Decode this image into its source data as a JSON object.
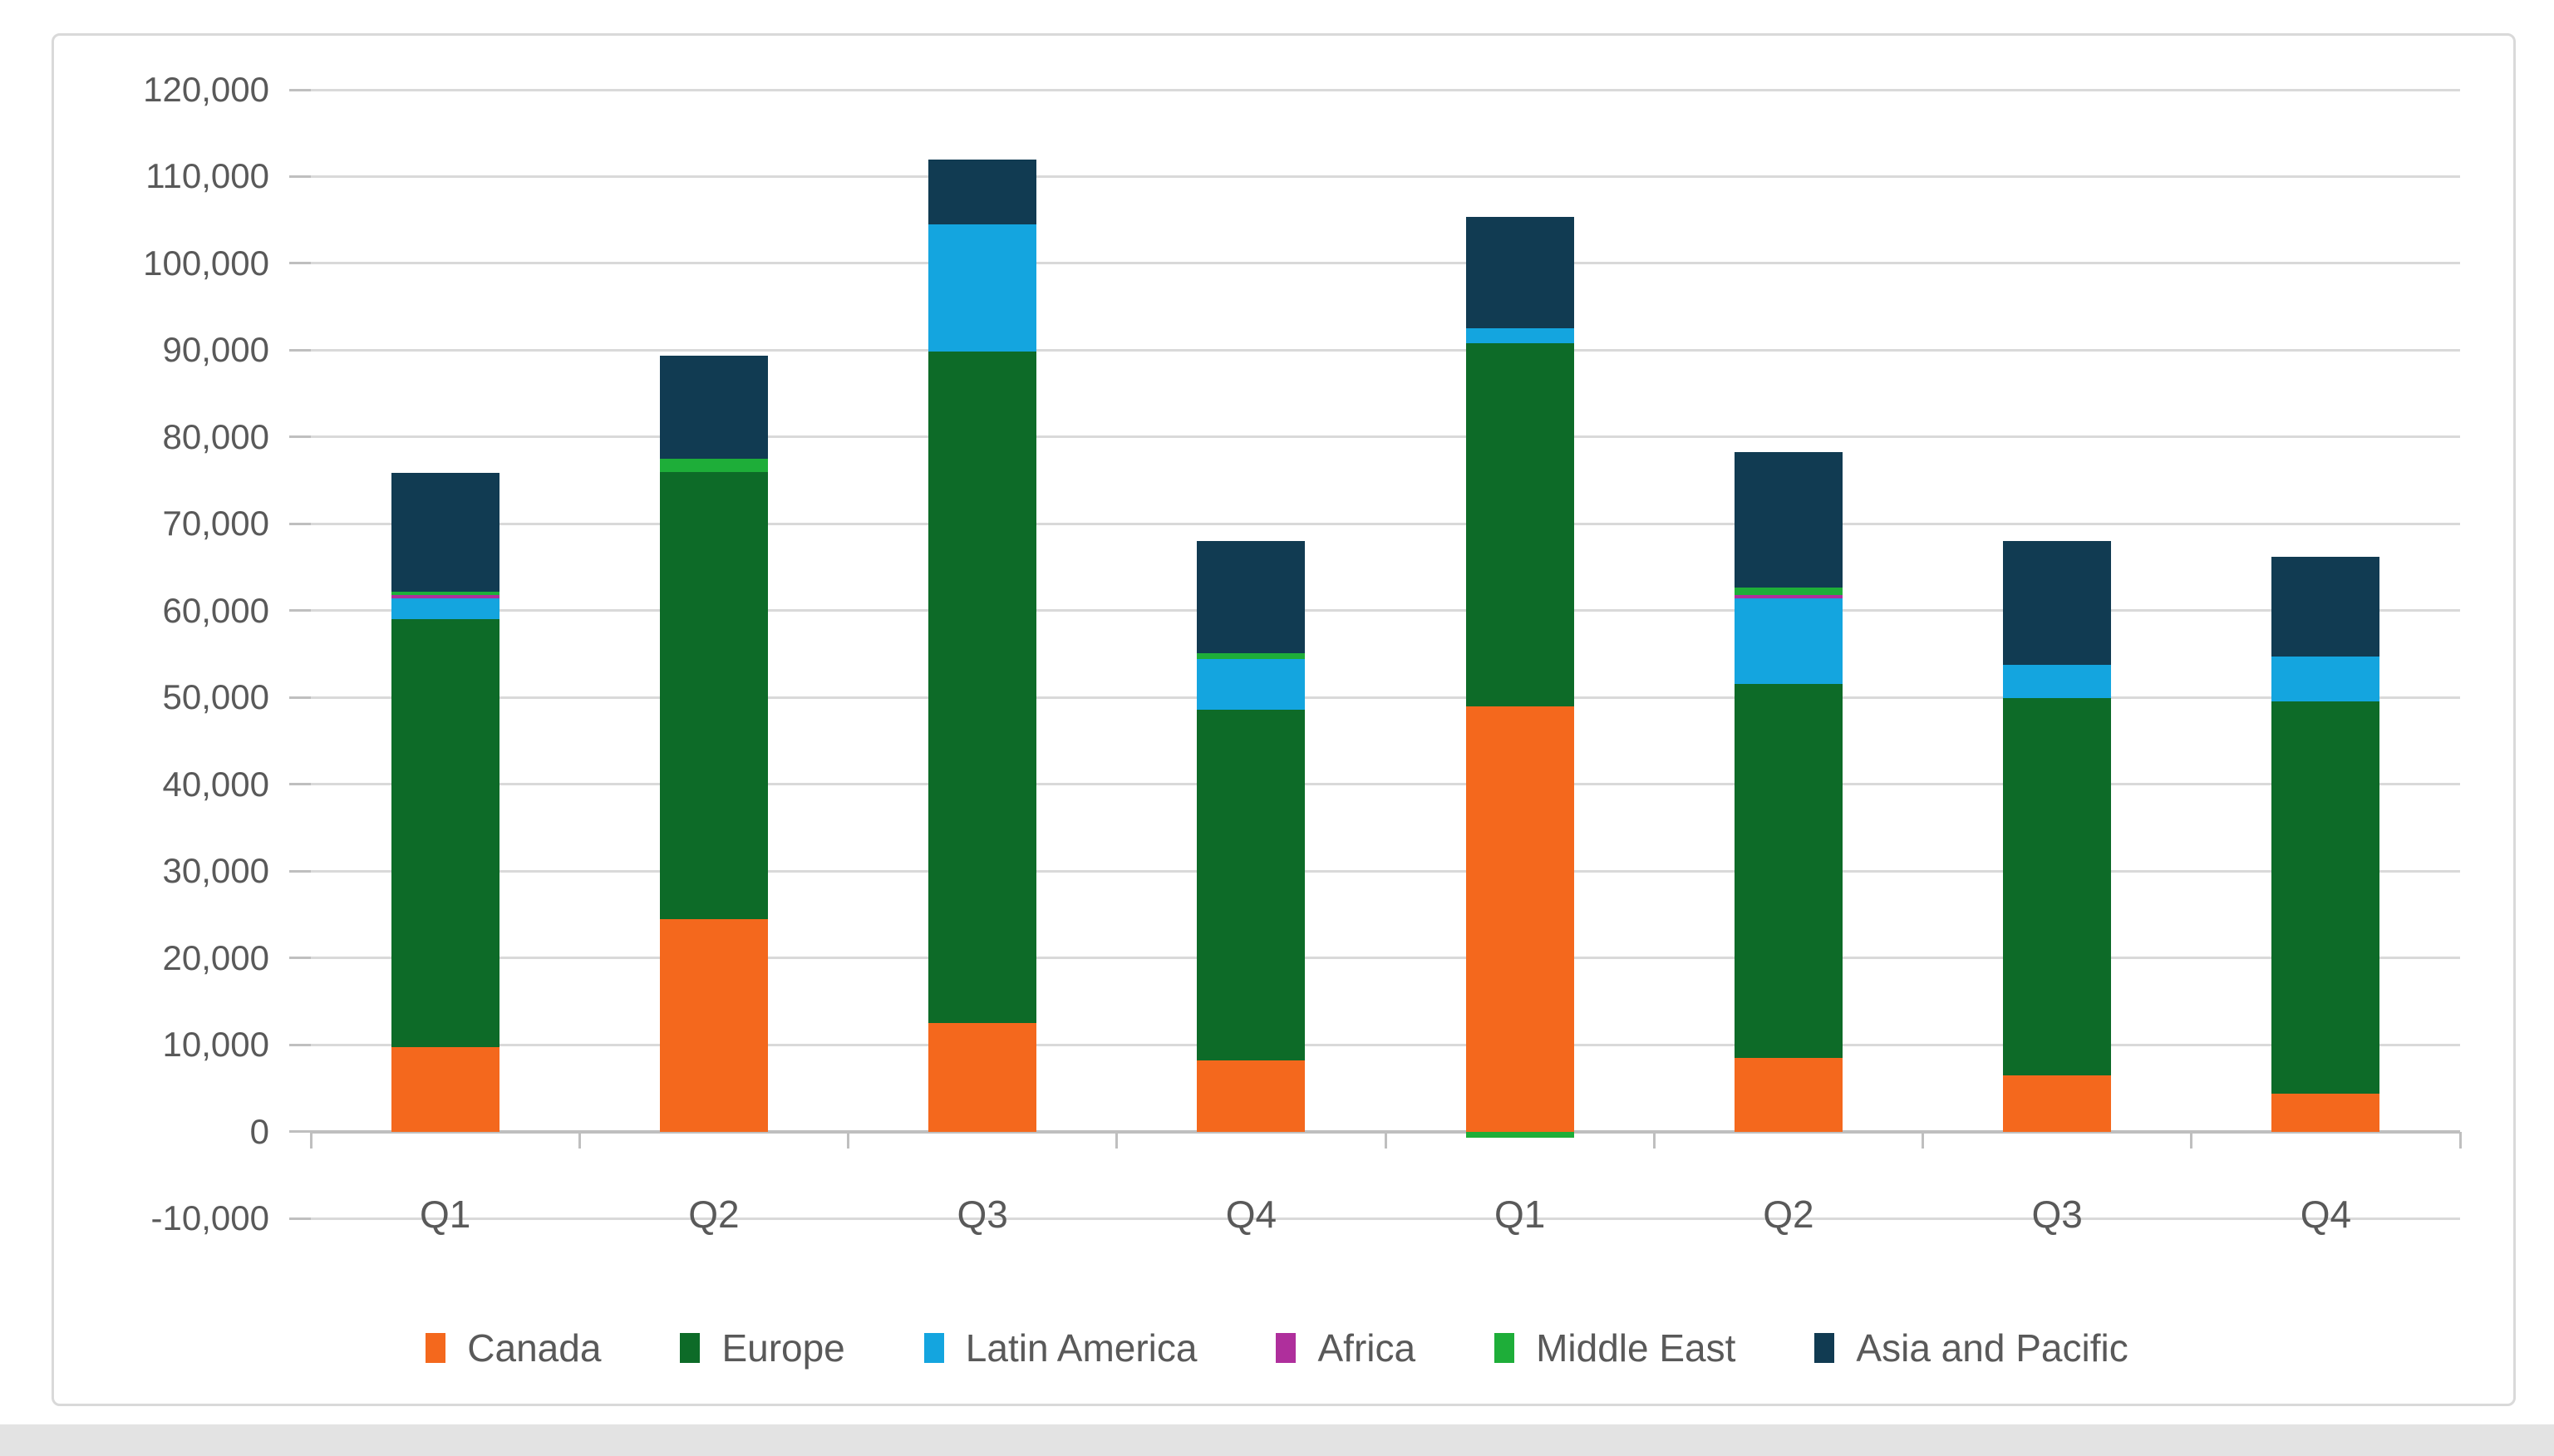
{
  "chart_data": {
    "type": "bar",
    "stacked": true,
    "title": "",
    "xlabel": "",
    "ylabel": "",
    "categories": [
      "Q1",
      "Q2",
      "Q3",
      "Q4",
      "Q1",
      "Q2",
      "Q3",
      "Q4"
    ],
    "series": [
      {
        "name": "Canada",
        "color": "#F4681D",
        "values": [
          9700,
          24500,
          12500,
          8200,
          49000,
          8500,
          6500,
          4400
        ]
      },
      {
        "name": "Europe",
        "color": "#0D6B28",
        "values": [
          49300,
          51500,
          77300,
          40400,
          41800,
          43100,
          43400,
          45100
        ]
      },
      {
        "name": "Latin America",
        "color": "#14A5DF",
        "values": [
          2400,
          0,
          14700,
          5800,
          1700,
          9800,
          3900,
          5200
        ]
      },
      {
        "name": "Africa",
        "color": "#AF2F9C",
        "values": [
          350,
          0,
          0,
          0,
          0,
          400,
          0,
          0
        ]
      },
      {
        "name": "Middle East",
        "color": "#1EAE39",
        "values": [
          450,
          1500,
          0,
          700,
          -700,
          900,
          0,
          0
        ]
      },
      {
        "name": "Asia and Pacific",
        "color": "#113B52",
        "values": [
          13700,
          11900,
          7500,
          12900,
          12900,
          15600,
          14200,
          11500
        ]
      }
    ],
    "bar_totals": [
      75900,
      89400,
      112000,
      68000,
      105400,
      78300,
      68000,
      66200
    ],
    "y_axis": {
      "min": -10000,
      "max": 120000,
      "step": 10000,
      "tick_labels": [
        "120,000",
        "110,000",
        "100,000",
        "90,000",
        "80,000",
        "70,000",
        "60,000",
        "50,000",
        "40,000",
        "30,000",
        "20,000",
        "10,000",
        "0",
        "-10,000"
      ]
    },
    "grid": true,
    "legend_position": "bottom",
    "colors": {
      "gridline": "#D9D9D9",
      "axis_line": "#BFBFBF",
      "axis_text": "#595959",
      "chart_border": "#D9D9D9",
      "background": "#FFFFFF"
    }
  }
}
